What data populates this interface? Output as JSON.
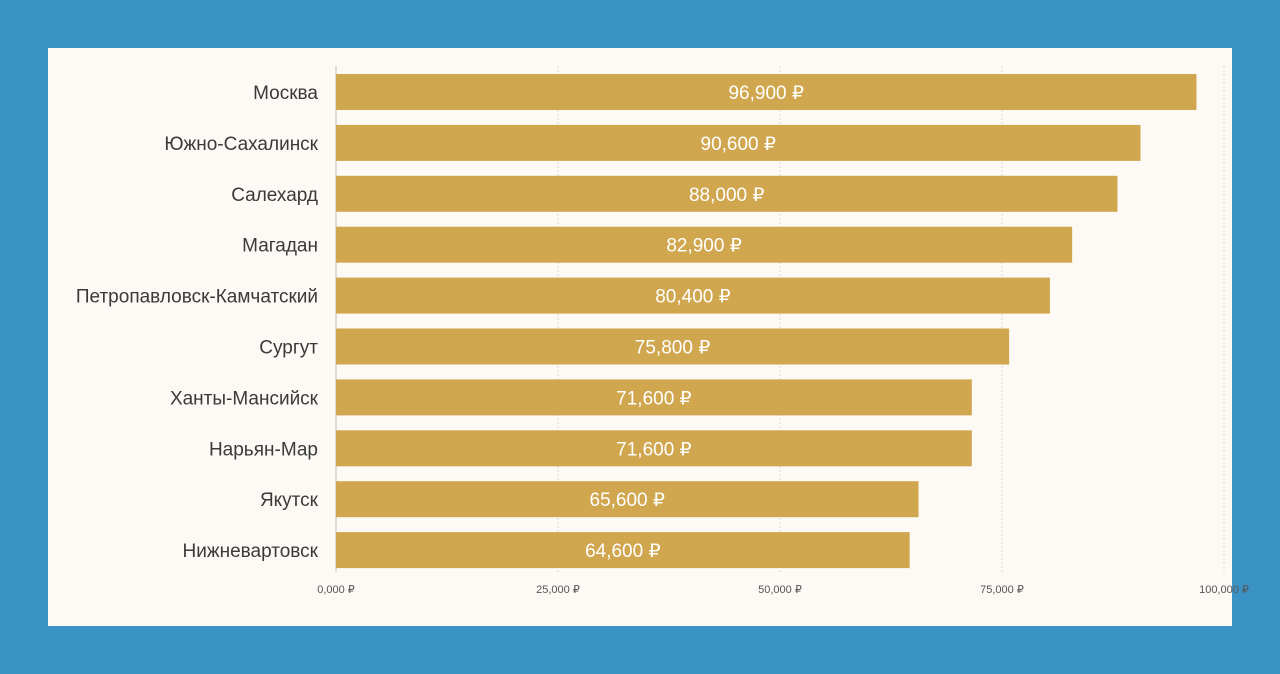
{
  "colors": {
    "background": "#3b92c4",
    "card": "#fdfaf5",
    "bar": "#d0a74f",
    "value_text": "#ffffff"
  },
  "chart_data": {
    "type": "bar",
    "orientation": "horizontal",
    "categories": [
      "Москва",
      "Южно-Сахалинск",
      "Салехард",
      "Магадан",
      "Петропавловск-Камчатский",
      "Сургут",
      "Ханты-Мансийск",
      "Нарьян-Мар",
      "Якутск",
      "Нижневартовск"
    ],
    "values": [
      96900,
      90600,
      88000,
      82900,
      80400,
      75800,
      71600,
      71600,
      65600,
      64600
    ],
    "value_labels": [
      "96,900 ₽",
      "90,600 ₽",
      "88,000 ₽",
      "82,900 ₽",
      "80,400 ₽",
      "75,800 ₽",
      "71,600 ₽",
      "71,600 ₽",
      "65,600 ₽",
      "64,600 ₽"
    ],
    "x_ticks": [
      0,
      25000,
      50000,
      75000,
      100000
    ],
    "x_tick_labels": [
      "0,000 ₽",
      "25,000 ₽",
      "50,000 ₽",
      "75,000 ₽",
      "100,000 ₽"
    ],
    "xlim": [
      0,
      100000
    ],
    "grid": true,
    "legend": "none",
    "title": "",
    "xlabel": "",
    "ylabel": ""
  }
}
